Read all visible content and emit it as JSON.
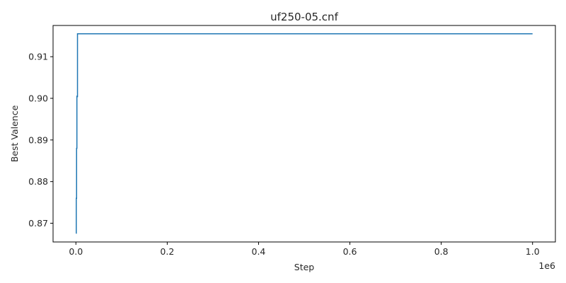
{
  "chart_data": {
    "type": "line",
    "title": "uf250-05.cnf",
    "xlabel": "Step",
    "ylabel": "Best Valence",
    "x_offset_label": "1e6",
    "xlim": [
      -50000,
      1050000
    ],
    "ylim": [
      0.8655,
      0.9175
    ],
    "x_ticks": [
      0,
      200000,
      400000,
      600000,
      800000,
      1000000
    ],
    "x_tick_labels": [
      "0.0",
      "0.2",
      "0.4",
      "0.6",
      "0.8",
      "1.0"
    ],
    "y_ticks": [
      0.87,
      0.88,
      0.89,
      0.9,
      0.91
    ],
    "y_tick_labels": [
      "0.87",
      "0.88",
      "0.89",
      "0.90",
      "0.91"
    ],
    "grid": false,
    "line_color": "#1f77b4",
    "series": [
      {
        "x": [
          0,
          800,
          800,
          1500,
          1500,
          2200,
          2200,
          3000,
          3000,
          3500,
          3500,
          1000000
        ],
        "y": [
          0.8676,
          0.8676,
          0.876,
          0.876,
          0.888,
          0.888,
          0.9005,
          0.9005,
          0.9004,
          0.9004,
          0.9155,
          0.9155
        ]
      }
    ]
  }
}
